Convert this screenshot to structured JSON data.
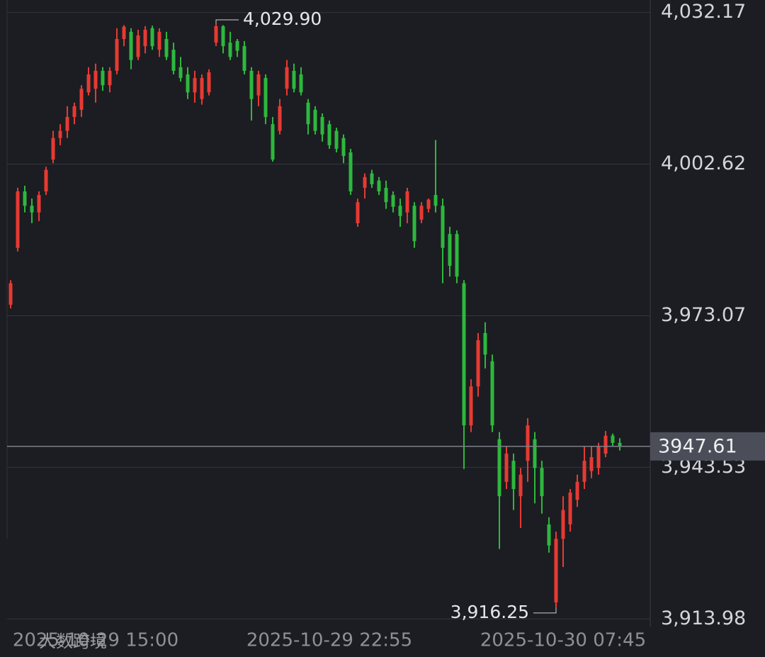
{
  "chart_data": {
    "type": "candlestick",
    "categories": [
      null,
      null,
      null,
      null,
      null,
      null,
      null,
      null,
      null,
      null,
      null,
      null,
      "2025-10-29 15:00",
      null,
      null,
      null,
      null,
      null,
      null,
      null,
      null,
      null,
      null,
      null,
      null,
      null,
      null,
      null,
      null,
      null,
      null,
      null,
      null,
      null,
      null,
      null,
      null,
      null,
      null,
      null,
      null,
      null,
      null,
      null,
      null,
      "2025-10-29 22:55",
      null,
      null,
      null,
      null,
      null,
      null,
      null,
      null,
      null,
      null,
      null,
      null,
      null,
      null,
      null,
      null,
      null,
      null,
      null,
      null,
      null,
      null,
      null,
      null,
      null,
      null,
      null,
      null,
      null,
      null,
      null,
      null,
      "2025-10-30 07:45",
      null,
      null,
      null,
      null,
      null,
      null,
      null,
      null
    ],
    "open": [
      3975.2,
      3986.3,
      3997.3,
      3994.5,
      3993.2,
      3997.3,
      4003.5,
      4007.7,
      4009.1,
      4011.8,
      4013.2,
      4016.6,
      4017.3,
      4020.8,
      4018.0,
      4020.8,
      4027.0,
      4028.4,
      4023.5,
      4025.6,
      4029.1,
      4024.9,
      4027.0,
      4024.9,
      4021.5,
      4020.1,
      4016.6,
      4015.3,
      4016.6,
      4026.3,
      4029.5,
      4026.3,
      4026.6,
      4025.6,
      4020.8,
      4016.0,
      4019.4,
      4010.4,
      4009.1,
      4017.3,
      4020.8,
      4020.1,
      4014.6,
      4013.2,
      4011.8,
      4010.4,
      4009.1,
      4007.7,
      4004.9,
      3991.1,
      3998.0,
      4000.8,
      3999.4,
      3998.0,
      3996.6,
      3994.5,
      3993.2,
      3994.5,
      3991.8,
      3993.9,
      3996.6,
      3994.5,
      3989.0,
      3989.0,
      3979.4,
      3951.7,
      3959.3,
      3969.7,
      3964.2,
      3949.0,
      3940.7,
      3944.8,
      3937.9,
      3944.8,
      3949.0,
      3943.4,
      3932.4,
      3917.2,
      3929.6,
      3932.4,
      3937.2,
      3940.7,
      3942.8,
      3943.4,
      3946.2,
      3949.7,
      3948.3
    ],
    "high": [
      3980.0,
      3998.0,
      3998.4,
      3995.9,
      3997.3,
      4002.1,
      4009.1,
      4010.4,
      4013.9,
      4014.6,
      4018.0,
      4021.5,
      4022.2,
      4021.5,
      4021.5,
      4029.1,
      4029.7,
      4029.1,
      4028.8,
      4029.5,
      4029.6,
      4029.1,
      4028.4,
      4026.3,
      4023.5,
      4021.5,
      4020.8,
      4020.1,
      4021.1,
      4029.9,
      4029.7,
      4028.4,
      4027.0,
      4026.6,
      4021.5,
      4020.8,
      4020.1,
      4011.8,
      4015.3,
      4022.9,
      4022.2,
      4021.5,
      4015.3,
      4013.9,
      4012.5,
      4011.1,
      4009.7,
      4008.4,
      4005.6,
      3995.9,
      4000.8,
      4001.5,
      4000.1,
      3999.4,
      3997.3,
      3995.9,
      3998.0,
      3995.2,
      3995.2,
      3995.9,
      4007.3,
      3995.9,
      3990.4,
      3989.7,
      3980.0,
      3960.7,
      3969.7,
      3971.8,
      3965.5,
      3950.4,
      3947.6,
      3946.2,
      3943.4,
      3953.1,
      3950.4,
      3944.8,
      3933.8,
      3931.0,
      3937.9,
      3939.3,
      3942.1,
      3947.6,
      3947.6,
      3948.3,
      3950.6,
      3950.1,
      3949.2
    ],
    "low": [
      3974.5,
      3985.6,
      3993.2,
      3991.1,
      3991.5,
      3996.6,
      4002.8,
      4006.3,
      4007.7,
      4010.4,
      4011.8,
      4016.0,
      4014.6,
      4016.9,
      4016.6,
      4020.1,
      4025.6,
      4021.1,
      4022.9,
      4024.2,
      4024.9,
      4023.5,
      4022.9,
      4020.1,
      4018.7,
      4015.3,
      4014.6,
      4014.2,
      4016.0,
      4025.6,
      4024.2,
      4022.9,
      4023.5,
      4020.1,
      4011.1,
      4013.9,
      4010.4,
      4003.1,
      4008.4,
      4016.0,
      4016.6,
      4016.0,
      4008.4,
      4008.4,
      4007.0,
      4005.6,
      4004.9,
      4002.8,
      3996.6,
      3990.4,
      3995.9,
      3998.0,
      3996.6,
      3993.9,
      3993.2,
      3990.4,
      3991.1,
      3986.3,
      3991.1,
      3993.2,
      3993.2,
      3979.4,
      3980.7,
      3979.4,
      3943.2,
      3950.4,
      3957.3,
      3962.8,
      3950.4,
      3927.6,
      3939.3,
      3935.2,
      3931.7,
      3940.7,
      3936.5,
      3934.5,
      3926.9,
      3916.25,
      3924.1,
      3931.0,
      3935.8,
      3939.3,
      3941.4,
      3942.1,
      3945.5,
      3947.6,
      3946.8
    ],
    "close": [
      3979.4,
      3997.3,
      3994.5,
      3993.2,
      3996.6,
      4001.5,
      4007.7,
      4009.1,
      4011.8,
      4013.9,
      4017.3,
      4020.1,
      4020.8,
      4018.0,
      4020.8,
      4027.0,
      4029.4,
      4022.9,
      4027.7,
      4028.8,
      4025.6,
      4028.4,
      4023.5,
      4020.8,
      4019.4,
      4016.6,
      4019.4,
      4019.4,
      4020.5,
      4029.5,
      4025.6,
      4023.5,
      4024.7,
      4020.8,
      4015.3,
      4020.1,
      4011.8,
      4003.5,
      4013.9,
      4021.5,
      4017.3,
      4016.6,
      4010.4,
      4009.1,
      4008.4,
      4006.3,
      4005.6,
      4004.2,
      3997.3,
      3995.2,
      4000.1,
      3998.7,
      3997.3,
      3995.2,
      3994.3,
      3992.5,
      3997.3,
      3987.6,
      3994.5,
      3995.7,
      3994.5,
      3986.3,
      3982.8,
      3980.7,
      3951.7,
      3959.3,
      3968.3,
      3965.5,
      3951.7,
      3937.9,
      3946.2,
      3939.3,
      3942.1,
      3951.7,
      3943.4,
      3937.9,
      3928.3,
      3929.6,
      3935.2,
      3938.6,
      3940.7,
      3944.8,
      3945.5,
      3947.6,
      3949.7,
      3948.3,
      3947.61
    ],
    "up_color": "#e63a33",
    "down_color": "#2db83d",
    "ylim": [
      3912.5,
      4034.6
    ],
    "yticks": [
      {
        "value": 4032.17,
        "label": "4,032.17"
      },
      {
        "value": 4002.62,
        "label": "4,002.62"
      },
      {
        "value": 3973.07,
        "label": "3,973.07"
      },
      {
        "value": 3943.53,
        "label": "3,943.53"
      },
      {
        "value": 3913.98,
        "label": "3,913.98"
      }
    ],
    "grid": true,
    "last_price": 3947.61,
    "high_label": {
      "value": 4029.9,
      "label": "4,029.90"
    },
    "low_label": {
      "value": 3916.25,
      "label": "3,916.25"
    },
    "watermark": "大数跨境"
  }
}
